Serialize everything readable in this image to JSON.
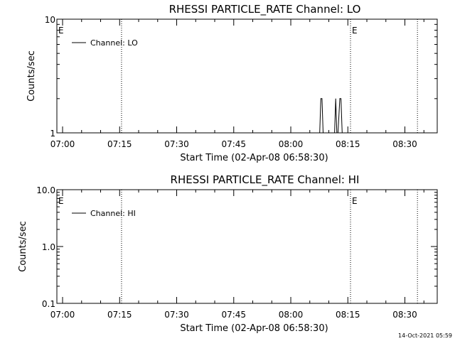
{
  "footer": {
    "timestamp": "14-Oct-2021 05:59"
  },
  "chart_data": [
    {
      "type": "line",
      "title": "RHESSI PARTICLE_RATE Channel: LO",
      "xlabel": "Start Time (02-Apr-08 06:58:30)",
      "ylabel": "Counts/sec",
      "yscale": "log",
      "ylim": [
        1,
        10
      ],
      "yticks": [
        {
          "value": 1,
          "label": "1"
        },
        {
          "value": 10,
          "label": "10"
        }
      ],
      "xlim_minutes_after_start": [
        0,
        100
      ],
      "xticks": [
        {
          "value": 1.5,
          "label": "07:00"
        },
        {
          "value": 16.5,
          "label": "07:15"
        },
        {
          "value": 31.5,
          "label": "07:30"
        },
        {
          "value": 46.5,
          "label": "07:45"
        },
        {
          "value": 61.5,
          "label": "08:00"
        },
        {
          "value": 76.5,
          "label": "08:15"
        },
        {
          "value": 91.5,
          "label": "08:30"
        }
      ],
      "series": [
        {
          "name": "Channel: LO",
          "color": "#000000",
          "x": [
            69.1,
            69.4,
            69.7,
            70.0,
            73.0,
            73.3,
            73.6,
            73.9,
            74.4,
            74.7,
            75.0
          ],
          "y": [
            1,
            2,
            2,
            1,
            1,
            2,
            1,
            1,
            2,
            2,
            1
          ]
        }
      ],
      "markers": [
        {
          "x": 17.0,
          "label": ""
        },
        {
          "x": 77.2,
          "label": "E"
        },
        {
          "x": 94.8,
          "label": ""
        },
        {
          "x": 0.0,
          "label": "E"
        }
      ],
      "legend": {
        "placement": "top-left"
      }
    },
    {
      "type": "line",
      "title": "RHESSI PARTICLE_RATE Channel: HI",
      "xlabel": "Start Time (02-Apr-08 06:58:30)",
      "ylabel": "Counts/sec",
      "yscale": "log",
      "ylim": [
        0.1,
        10
      ],
      "yticks": [
        {
          "value": 0.1,
          "label": "0.1"
        },
        {
          "value": 1,
          "label": "1.0"
        },
        {
          "value": 10,
          "label": "10.0"
        }
      ],
      "xlim_minutes_after_start": [
        0,
        100
      ],
      "xticks": [
        {
          "value": 1.5,
          "label": "07:00"
        },
        {
          "value": 16.5,
          "label": "07:15"
        },
        {
          "value": 31.5,
          "label": "07:30"
        },
        {
          "value": 46.5,
          "label": "07:45"
        },
        {
          "value": 61.5,
          "label": "08:00"
        },
        {
          "value": 76.5,
          "label": "08:15"
        },
        {
          "value": 91.5,
          "label": "08:30"
        }
      ],
      "series": [
        {
          "name": "Channel: HI",
          "color": "#000000",
          "x": [],
          "y": []
        }
      ],
      "markers": [
        {
          "x": 17.0,
          "label": ""
        },
        {
          "x": 77.2,
          "label": "E"
        },
        {
          "x": 94.8,
          "label": ""
        },
        {
          "x": 0.0,
          "label": "E"
        }
      ],
      "legend": {
        "placement": "top-left"
      }
    }
  ]
}
